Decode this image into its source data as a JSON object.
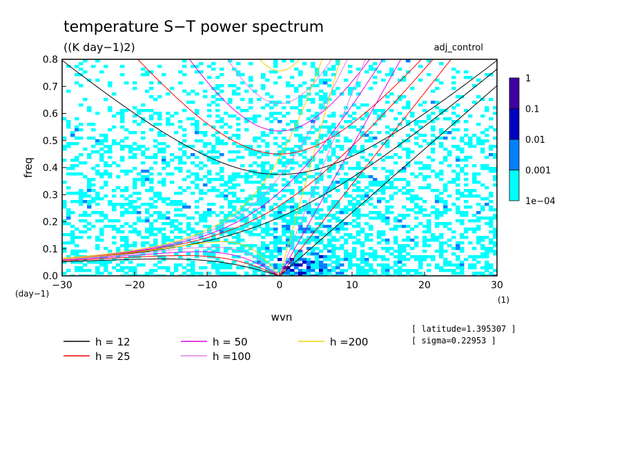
{
  "chart_data": {
    "type": "heatmap",
    "title": "temperature S−T power spectrum",
    "subtitle": "((K day−1)2)",
    "run_label": "adj_control",
    "xlabel": "wvn",
    "ylabel": "freq",
    "x_unit": "(1)",
    "y_unit": "(day−1)",
    "xlim": [
      -30,
      30
    ],
    "ylim": [
      0,
      0.8
    ],
    "x_ticks": [
      -30,
      -20,
      -10,
      0,
      10,
      20,
      30
    ],
    "x_tick_labels": [
      "−30",
      "−20",
      "−10",
      "0",
      "10",
      "20",
      "30"
    ],
    "y_ticks": [
      0,
      0.1,
      0.2,
      0.3,
      0.4,
      0.5,
      0.6,
      0.7,
      0.8
    ],
    "y_tick_labels": [
      "0.0",
      "0.1",
      "0.2",
      "0.3",
      "0.4",
      "0.5",
      "0.6",
      "0.7",
      "0.8"
    ],
    "colorbar": {
      "levels": [
        "1e−04",
        "0.001",
        "0.01",
        "0.1",
        "1"
      ],
      "colors": [
        "#00ffff",
        "#0080ff",
        "#0000c0",
        "#4000a0"
      ]
    },
    "field_description_levels": {
      "cyan": "1e-04 to 0.001",
      "light_blue": "0.001 to 0.01",
      "dark_blue": "0.01 to 0.1"
    },
    "dispersion_curves": [
      {
        "label": "h = 12",
        "h": 12,
        "color": "#000000"
      },
      {
        "label": "h = 25",
        "h": 25,
        "color": "#ff0000"
      },
      {
        "label": "h = 50",
        "h": 50,
        "color": "#e000e0"
      },
      {
        "label": "h =100",
        "h": 100,
        "color": "#e080e0"
      },
      {
        "label": "h =200",
        "h": 200,
        "color": "#f0d000"
      }
    ],
    "info": [
      "[ latitude=1.395307 ]",
      "[ sigma=0.22953 ]"
    ]
  }
}
